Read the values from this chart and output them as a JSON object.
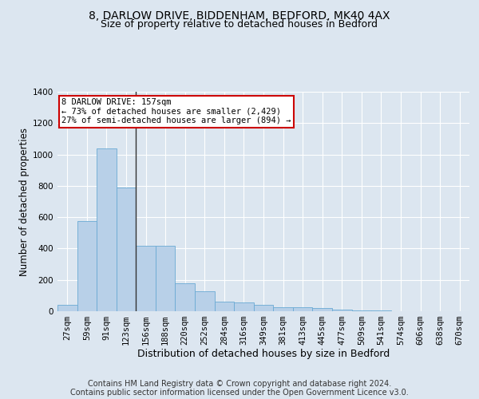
{
  "title_line1": "8, DARLOW DRIVE, BIDDENHAM, BEDFORD, MK40 4AX",
  "title_line2": "Size of property relative to detached houses in Bedford",
  "xlabel": "Distribution of detached houses by size in Bedford",
  "ylabel": "Number of detached properties",
  "categories": [
    "27sqm",
    "59sqm",
    "91sqm",
    "123sqm",
    "156sqm",
    "188sqm",
    "220sqm",
    "252sqm",
    "284sqm",
    "316sqm",
    "349sqm",
    "381sqm",
    "413sqm",
    "445sqm",
    "477sqm",
    "509sqm",
    "541sqm",
    "574sqm",
    "606sqm",
    "638sqm",
    "670sqm"
  ],
  "values": [
    40,
    575,
    1040,
    790,
    415,
    415,
    180,
    125,
    60,
    55,
    40,
    25,
    25,
    18,
    10,
    5,
    3,
    2,
    1,
    1,
    0
  ],
  "bar_color": "#b8d0e8",
  "bar_edge_color": "#6aaad4",
  "annotation_text": "8 DARLOW DRIVE: 157sqm\n← 73% of detached houses are smaller (2,429)\n27% of semi-detached houses are larger (894) →",
  "annotation_box_color": "#ffffff",
  "annotation_box_edge": "#cc0000",
  "vline_color": "#333333",
  "ylim": [
    0,
    1400
  ],
  "yticks": [
    0,
    200,
    400,
    600,
    800,
    1000,
    1200,
    1400
  ],
  "fig_bg_color": "#dce6f0",
  "plot_bg_color": "#dce6f0",
  "footer_line1": "Contains HM Land Registry data © Crown copyright and database right 2024.",
  "footer_line2": "Contains public sector information licensed under the Open Government Licence v3.0.",
  "title_fontsize": 10,
  "subtitle_fontsize": 9,
  "tick_fontsize": 7.5,
  "xlabel_fontsize": 9,
  "ylabel_fontsize": 8.5,
  "footer_fontsize": 7
}
